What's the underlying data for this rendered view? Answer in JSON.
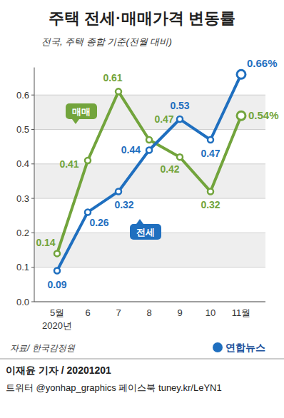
{
  "chart_data": {
    "type": "line",
    "title": "주택 전세·매매가격 변동률",
    "subtitle": "전국, 주택 종합 기준(전월 대비)",
    "categories": [
      "5월",
      "6",
      "7",
      "8",
      "9",
      "10",
      "11월"
    ],
    "xlabel": "2020년",
    "series": [
      {
        "name": "매매",
        "color": "#72a43c",
        "values": [
          0.14,
          0.41,
          0.61,
          0.47,
          0.42,
          0.32,
          0.54
        ],
        "value_labels": [
          "0.14",
          "0.41",
          "0.61",
          "0.47",
          "0.42",
          "0.32",
          "0.54%"
        ]
      },
      {
        "name": "전세",
        "color": "#1f6fbf",
        "values": [
          0.09,
          0.26,
          0.32,
          0.44,
          0.53,
          0.47,
          0.66
        ],
        "value_labels": [
          "0.09",
          "0.26",
          "0.32",
          "0.44",
          "0.53",
          "0.47",
          "0.66%"
        ]
      }
    ],
    "ylim": [
      0,
      0.68
    ],
    "yticks": [
      {
        "value": 0,
        "label": "0.0"
      },
      0.1,
      0.2,
      0.3,
      0.4,
      0.5,
      0.6
    ],
    "grid": true,
    "data_labels": true,
    "marker": "circle",
    "source": "자료/ 한국감정원",
    "logo": "연합뉴스",
    "byline": "이재윤 기자 / 20201201",
    "credits": "트위터 @yonhap_graphics  페이스북 tuney.kr/LeYN1"
  }
}
